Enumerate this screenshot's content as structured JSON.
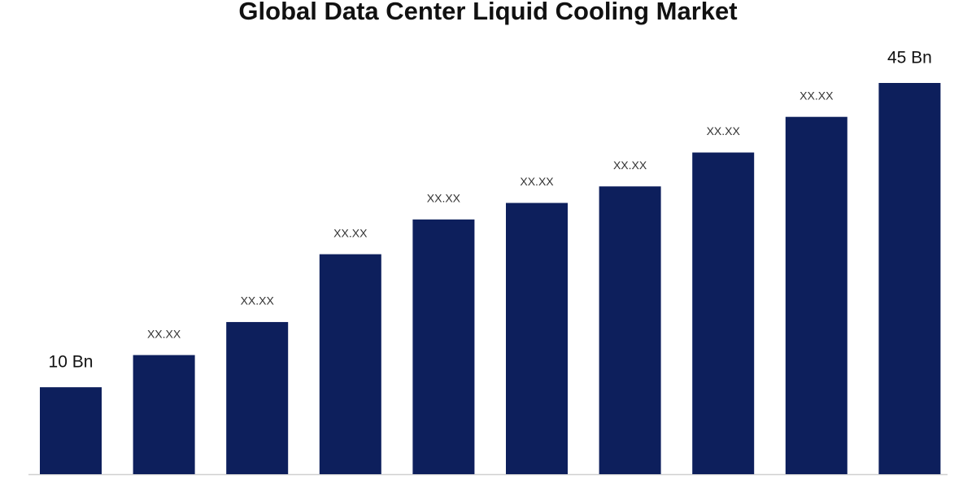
{
  "chart_data": {
    "type": "bar",
    "title": "Global Data Center Liquid Cooling Market",
    "categories": [
      null,
      null,
      null,
      null,
      null,
      null,
      null,
      null,
      null,
      null
    ],
    "values": [
      10,
      13.7,
      17.5,
      25.3,
      29.3,
      31.2,
      33.1,
      37.0,
      41.1,
      45
    ],
    "value_labels": [
      "10 Bn",
      "XX.XX",
      "XX.XX",
      "XX.XX",
      "XX.XX",
      "XX.XX",
      "XX.XX",
      "XX.XX",
      "XX.XX",
      "45 Bn"
    ],
    "color": "#0d1f5c"
  }
}
